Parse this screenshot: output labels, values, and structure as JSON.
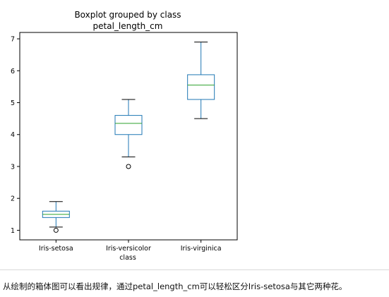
{
  "chart_data": {
    "type": "boxplot",
    "title": "Boxplot grouped by class",
    "subtitle": "petal_length_cm",
    "xlabel": "class",
    "ylabel": "",
    "ylim": [
      0.7,
      7.2
    ],
    "yticks": [
      1,
      2,
      3,
      4,
      5,
      6,
      7
    ],
    "grid": false,
    "colors": {
      "box": "#1f77b4",
      "median": "#2ca02c",
      "whisker": "#1f77b4",
      "flier": "#000000"
    },
    "categories": [
      "Iris-setosa",
      "Iris-versicolor",
      "Iris-virginica"
    ],
    "boxes": [
      {
        "category": "Iris-setosa",
        "whisker_low": 1.1,
        "q1": 1.4,
        "median": 1.5,
        "q3": 1.6,
        "whisker_high": 1.9,
        "outliers": [
          1.0
        ]
      },
      {
        "category": "Iris-versicolor",
        "whisker_low": 3.3,
        "q1": 4.0,
        "median": 4.35,
        "q3": 4.6,
        "whisker_high": 5.1,
        "outliers": [
          3.0
        ]
      },
      {
        "category": "Iris-virginica",
        "whisker_low": 4.5,
        "q1": 5.1,
        "median": 5.55,
        "q3": 5.875,
        "whisker_high": 6.9,
        "outliers": []
      }
    ]
  },
  "caption": "从绘制的箱体图可以看出规律，通过petal_length_cm可以轻松区分Iris-setosa与其它两种花。"
}
